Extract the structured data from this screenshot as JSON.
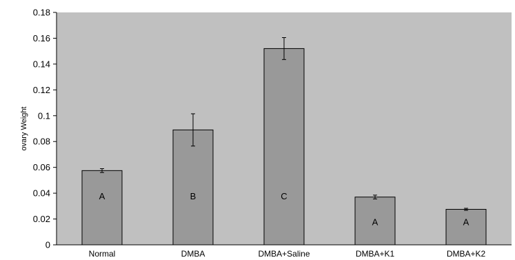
{
  "chart_data": {
    "type": "bar",
    "title": "",
    "xlabel": "",
    "ylabel": "ovary Weight",
    "ylim": [
      0,
      0.18
    ],
    "yticks": [
      "0",
      "0.02",
      "0.04",
      "0.06",
      "0.08",
      "0.1",
      "0.12",
      "0.14",
      "0.16",
      "0.18"
    ],
    "categories": [
      "Normal",
      "DMBA",
      "DMBA+Saline",
      "DMBA+K1",
      "DMBA+K2"
    ],
    "values": [
      0.0575,
      0.089,
      0.152,
      0.037,
      0.0275
    ],
    "error": [
      0.0015,
      0.0125,
      0.0085,
      0.0015,
      0.0008
    ],
    "group_letters": [
      "A",
      "B",
      "C",
      "A",
      "A"
    ],
    "grid": false,
    "legend": "none",
    "colors": {
      "plot_background": "#c0c0c0",
      "bar_fill": "#999999",
      "bar_stroke": "#000000",
      "axis": "#000000"
    }
  }
}
